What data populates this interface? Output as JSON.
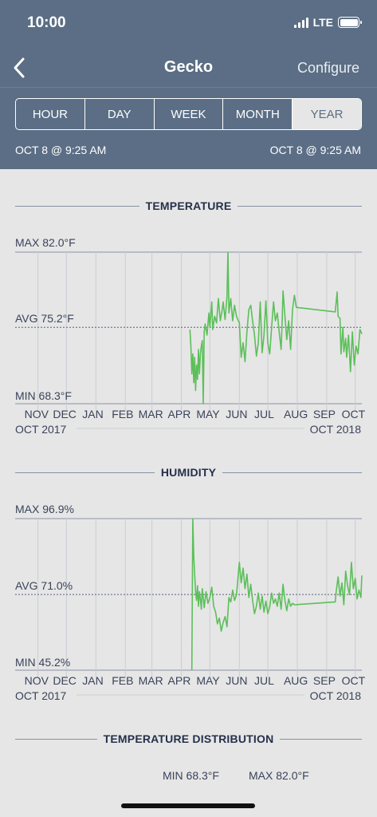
{
  "status": {
    "time": "10:00",
    "network": "LTE",
    "icons": [
      "signal-icon",
      "battery-icon"
    ]
  },
  "nav": {
    "back_icon": "chevron-left-icon",
    "title": "Gecko",
    "configure": "Configure"
  },
  "tabs": [
    {
      "label": "HOUR",
      "active": false
    },
    {
      "label": "DAY",
      "active": false
    },
    {
      "label": "WEEK",
      "active": false
    },
    {
      "label": "MONTH",
      "active": false
    },
    {
      "label": "YEAR",
      "active": true
    }
  ],
  "range": {
    "start": "OCT 8 @ 9:25 AM",
    "end": "OCT 8 @ 9:25 AM"
  },
  "colors": {
    "header": "#5b6e85",
    "line": "#5cbf5a",
    "background": "#e6e6e6"
  },
  "months": [
    "NOV",
    "DEC",
    "JAN",
    "FEB",
    "MAR",
    "APR",
    "MAY",
    "JUN",
    "JUL",
    "AUG",
    "SEP",
    "OCT"
  ],
  "period": {
    "start": "OCT 2017",
    "end": "OCT 2018"
  },
  "chart_data": [
    {
      "type": "line",
      "title": "TEMPERATURE",
      "unit": "°F",
      "max_label": "MAX 82.0°F",
      "avg_label": "AVG 75.2°F",
      "min_label": "MIN 68.3°F",
      "ylim": [
        68.3,
        82.0
      ],
      "avg": 75.2,
      "x_range": [
        "2017-10-08",
        "2018-10-08"
      ],
      "series": [
        {
          "values": [
            [
              "2018-04-10",
              75.0
            ],
            [
              "2018-04-11",
              73.5
            ],
            [
              "2018-04-12",
              71.0
            ],
            [
              "2018-04-13",
              72.8
            ],
            [
              "2018-04-14",
              70.2
            ],
            [
              "2018-04-15",
              72.5
            ],
            [
              "2018-04-16",
              69.5
            ],
            [
              "2018-04-17",
              71.8
            ],
            [
              "2018-04-18",
              70.5
            ],
            [
              "2018-04-19",
              73.2
            ],
            [
              "2018-04-20",
              71.0
            ],
            [
              "2018-04-21",
              72.8
            ],
            [
              "2018-04-22",
              73.5
            ],
            [
              "2018-04-23",
              74.0
            ],
            [
              "2018-04-24",
              68.3
            ],
            [
              "2018-04-25",
              74.8
            ],
            [
              "2018-04-26",
              75.5
            ],
            [
              "2018-04-28",
              74.5
            ],
            [
              "2018-04-30",
              76.5
            ],
            [
              "2018-05-01",
              75.2
            ],
            [
              "2018-05-03",
              77.5
            ],
            [
              "2018-05-04",
              75.0
            ],
            [
              "2018-05-06",
              76.2
            ],
            [
              "2018-05-08",
              75.6
            ],
            [
              "2018-05-10",
              77.8
            ],
            [
              "2018-05-12",
              75.8
            ],
            [
              "2018-05-14",
              76.8
            ],
            [
              "2018-05-15",
              77.5
            ],
            [
              "2018-05-17",
              75.9
            ],
            [
              "2018-05-19",
              78.0
            ],
            [
              "2018-05-20",
              82.0
            ],
            [
              "2018-05-21",
              76.5
            ],
            [
              "2018-05-23",
              77.8
            ],
            [
              "2018-05-25",
              75.8
            ],
            [
              "2018-05-27",
              77.2
            ],
            [
              "2018-05-29",
              76.2
            ],
            [
              "2018-06-01",
              75.6
            ],
            [
              "2018-06-03",
              72.5
            ],
            [
              "2018-06-05",
              73.8
            ],
            [
              "2018-06-07",
              72.1
            ],
            [
              "2018-06-09",
              74.8
            ],
            [
              "2018-06-11",
              76.8
            ],
            [
              "2018-06-13",
              77.2
            ],
            [
              "2018-06-15",
              75.8
            ],
            [
              "2018-06-17",
              74.5
            ],
            [
              "2018-06-19",
              72.6
            ],
            [
              "2018-06-21",
              73.8
            ],
            [
              "2018-06-23",
              77.5
            ],
            [
              "2018-06-25",
              72.9
            ],
            [
              "2018-06-27",
              74.5
            ],
            [
              "2018-06-29",
              77.6
            ],
            [
              "2018-07-01",
              73.8
            ],
            [
              "2018-07-03",
              72.8
            ],
            [
              "2018-07-05",
              75.2
            ],
            [
              "2018-07-07",
              77.5
            ],
            [
              "2018-07-09",
              75.8
            ],
            [
              "2018-07-11",
              76.5
            ],
            [
              "2018-07-13",
              74.8
            ],
            [
              "2018-07-15",
              73.2
            ],
            [
              "2018-07-16",
              75.5
            ],
            [
              "2018-07-17",
              78.5
            ],
            [
              "2018-07-19",
              76.2
            ],
            [
              "2018-07-21",
              74.1
            ],
            [
              "2018-07-23",
              75.8
            ],
            [
              "2018-07-25",
              73.2
            ],
            [
              "2018-07-27",
              76.8
            ],
            [
              "2018-07-29",
              78.1
            ],
            [
              "2018-07-31",
              77.0
            ],
            [
              "2018-09-10",
              76.6
            ],
            [
              "2018-09-11",
              77.5
            ],
            [
              "2018-09-12",
              78.4
            ],
            [
              "2018-09-13",
              76.2
            ],
            [
              "2018-09-15",
              76.0
            ],
            [
              "2018-09-16",
              72.8
            ],
            [
              "2018-09-18",
              75.2
            ],
            [
              "2018-09-19",
              73.0
            ],
            [
              "2018-09-21",
              74.2
            ],
            [
              "2018-09-22",
              72.5
            ],
            [
              "2018-09-24",
              74.5
            ],
            [
              "2018-09-26",
              71.2
            ],
            [
              "2018-09-28",
              74.8
            ],
            [
              "2018-09-30",
              71.8
            ],
            [
              "2018-10-02",
              73.5
            ],
            [
              "2018-10-04",
              72.8
            ],
            [
              "2018-10-06",
              75.0
            ],
            [
              "2018-10-08",
              74.6
            ]
          ]
        }
      ]
    },
    {
      "type": "line",
      "title": "HUMIDITY",
      "unit": "%",
      "max_label": "MAX 96.9%",
      "avg_label": "AVG 71.0%",
      "min_label": "MIN 45.2%",
      "ylim": [
        45.2,
        96.9
      ],
      "avg": 71.0,
      "x_range": [
        "2017-10-08",
        "2018-10-08"
      ],
      "series": [
        {
          "values": [
            [
              "2018-04-12",
              45.2
            ],
            [
              "2018-04-13",
              96.9
            ],
            [
              "2018-04-14",
              84.0
            ],
            [
              "2018-04-15",
              78.0
            ],
            [
              "2018-04-16",
              72.0
            ],
            [
              "2018-04-17",
              69.0
            ],
            [
              "2018-04-18",
              74.0
            ],
            [
              "2018-04-19",
              67.0
            ],
            [
              "2018-04-20",
              72.0
            ],
            [
              "2018-04-21",
              69.5
            ],
            [
              "2018-04-22",
              66.0
            ],
            [
              "2018-04-23",
              73.0
            ],
            [
              "2018-04-24",
              70.0
            ],
            [
              "2018-04-25",
              66.5
            ],
            [
              "2018-04-27",
              72.0
            ],
            [
              "2018-04-29",
              68.0
            ],
            [
              "2018-05-01",
              70.0
            ],
            [
              "2018-05-03",
              73.5
            ],
            [
              "2018-05-05",
              67.0
            ],
            [
              "2018-05-07",
              65.0
            ],
            [
              "2018-05-09",
              61.0
            ],
            [
              "2018-05-11",
              63.0
            ],
            [
              "2018-05-13",
              58.5
            ],
            [
              "2018-05-15",
              61.5
            ],
            [
              "2018-05-17",
              63.5
            ],
            [
              "2018-05-19",
              60.0
            ],
            [
              "2018-05-21",
              70.0
            ],
            [
              "2018-05-23",
              68.5
            ],
            [
              "2018-05-25",
              72.5
            ],
            [
              "2018-05-27",
              69.0
            ],
            [
              "2018-05-29",
              70.8
            ],
            [
              "2018-06-01",
              82.0
            ],
            [
              "2018-06-03",
              75.0
            ],
            [
              "2018-06-05",
              80.0
            ],
            [
              "2018-06-07",
              73.0
            ],
            [
              "2018-06-09",
              78.0
            ],
            [
              "2018-06-11",
              70.0
            ],
            [
              "2018-06-13",
              74.5
            ],
            [
              "2018-06-15",
              69.0
            ],
            [
              "2018-06-17",
              64.5
            ],
            [
              "2018-06-19",
              67.0
            ],
            [
              "2018-06-21",
              71.5
            ],
            [
              "2018-06-23",
              66.0
            ],
            [
              "2018-06-25",
              70.5
            ],
            [
              "2018-06-27",
              65.0
            ],
            [
              "2018-06-29",
              68.8
            ],
            [
              "2018-07-01",
              64.5
            ],
            [
              "2018-07-03",
              66.8
            ],
            [
              "2018-07-05",
              71.5
            ],
            [
              "2018-07-07",
              68.0
            ],
            [
              "2018-07-09",
              69.5
            ],
            [
              "2018-07-11",
              67.0
            ],
            [
              "2018-07-13",
              71.5
            ],
            [
              "2018-07-15",
              66.0
            ],
            [
              "2018-07-17",
              74.5
            ],
            [
              "2018-07-19",
              69.0
            ],
            [
              "2018-07-21",
              65.5
            ],
            [
              "2018-07-23",
              69.5
            ],
            [
              "2018-07-25",
              67.0
            ],
            [
              "2018-07-27",
              68.0
            ],
            [
              "2018-07-29",
              67.5
            ],
            [
              "2018-09-10",
              68.5
            ],
            [
              "2018-09-11",
              72.0
            ],
            [
              "2018-09-13",
              77.0
            ],
            [
              "2018-09-15",
              70.5
            ],
            [
              "2018-09-17",
              75.0
            ],
            [
              "2018-09-19",
              67.5
            ],
            [
              "2018-09-21",
              79.0
            ],
            [
              "2018-09-23",
              74.0
            ],
            [
              "2018-09-25",
              71.0
            ],
            [
              "2018-09-27",
              82.0
            ],
            [
              "2018-09-29",
              73.0
            ],
            [
              "2018-10-01",
              76.5
            ],
            [
              "2018-10-03",
              69.5
            ],
            [
              "2018-10-05",
              72.5
            ],
            [
              "2018-10-07",
              70.0
            ],
            [
              "2018-10-08",
              77.5
            ]
          ]
        }
      ]
    }
  ],
  "distribution": {
    "title": "TEMPERATURE DISTRIBUTION",
    "min_label": "MIN 68.3°F",
    "max_label": "MAX 82.0°F"
  }
}
